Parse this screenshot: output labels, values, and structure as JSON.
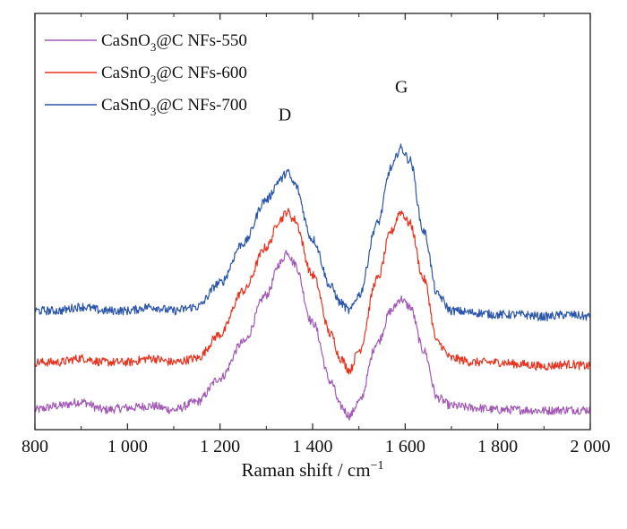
{
  "chart_data": {
    "type": "line",
    "title": "",
    "xlabel": "Raman shift / cm",
    "xlabel_superscript": "−1",
    "ylabel": "",
    "xlim": [
      800,
      2000
    ],
    "ylim": [
      0,
      1.05
    ],
    "x_ticks": [
      800,
      1000,
      1200,
      1400,
      1600,
      1800,
      2000
    ],
    "x_tick_labels": [
      "800",
      "1 000",
      "1 200",
      "1 400",
      "1 600",
      "1 800",
      "2 000"
    ],
    "y_ticks_shown": false,
    "grid": false,
    "legend_position": "top-left",
    "annotations": [
      {
        "text": "D",
        "x": 1340,
        "y": 0.78
      },
      {
        "text": "G",
        "x": 1592,
        "y": 0.85
      }
    ],
    "series": [
      {
        "name": "CaSnO3@C NFs-550",
        "name_parts": [
          "CaSnO",
          "3",
          "@C NFs-550"
        ],
        "color": "#a259b5",
        "x": [
          800,
          850,
          900,
          950,
          1000,
          1050,
          1100,
          1150,
          1200,
          1250,
          1300,
          1330,
          1345,
          1360,
          1400,
          1440,
          1460,
          1480,
          1500,
          1540,
          1570,
          1590,
          1610,
          1640,
          1670,
          1700,
          1750,
          1800,
          1850,
          1900,
          1950,
          2000
        ],
        "y": [
          0.05,
          0.06,
          0.07,
          0.05,
          0.055,
          0.06,
          0.05,
          0.07,
          0.13,
          0.22,
          0.34,
          0.42,
          0.45,
          0.42,
          0.27,
          0.12,
          0.06,
          0.035,
          0.07,
          0.22,
          0.3,
          0.33,
          0.31,
          0.2,
          0.08,
          0.06,
          0.055,
          0.05,
          0.05,
          0.048,
          0.05,
          0.05
        ]
      },
      {
        "name": "CaSnO3@C NFs-600",
        "name_parts": [
          "CaSnO",
          "3",
          "@C NFs-600"
        ],
        "color": "#e8321e",
        "x": [
          800,
          850,
          900,
          950,
          1000,
          1050,
          1100,
          1150,
          1200,
          1250,
          1300,
          1330,
          1345,
          1360,
          1400,
          1440,
          1460,
          1480,
          1500,
          1540,
          1570,
          1590,
          1610,
          1640,
          1670,
          1700,
          1750,
          1800,
          1850,
          1900,
          1950,
          2000
        ],
        "y": [
          0.17,
          0.17,
          0.18,
          0.17,
          0.17,
          0.18,
          0.17,
          0.18,
          0.24,
          0.35,
          0.46,
          0.53,
          0.55,
          0.53,
          0.39,
          0.24,
          0.18,
          0.15,
          0.2,
          0.38,
          0.5,
          0.55,
          0.52,
          0.38,
          0.22,
          0.18,
          0.17,
          0.17,
          0.165,
          0.16,
          0.165,
          0.16
        ]
      },
      {
        "name": "CaSnO3@C NFs-700",
        "name_parts": [
          "CaSnO",
          "3",
          "@C NFs-700"
        ],
        "color": "#2a55a8",
        "x": [
          800,
          850,
          900,
          950,
          1000,
          1050,
          1100,
          1150,
          1200,
          1250,
          1300,
          1330,
          1345,
          1360,
          1400,
          1440,
          1460,
          1480,
          1500,
          1540,
          1570,
          1590,
          1610,
          1640,
          1670,
          1700,
          1750,
          1800,
          1850,
          1900,
          1950,
          2000
        ],
        "y": [
          0.3,
          0.3,
          0.31,
          0.3,
          0.3,
          0.31,
          0.3,
          0.31,
          0.37,
          0.47,
          0.58,
          0.63,
          0.65,
          0.62,
          0.48,
          0.36,
          0.32,
          0.3,
          0.34,
          0.52,
          0.66,
          0.71,
          0.68,
          0.5,
          0.34,
          0.3,
          0.295,
          0.29,
          0.29,
          0.285,
          0.29,
          0.285
        ]
      }
    ]
  }
}
